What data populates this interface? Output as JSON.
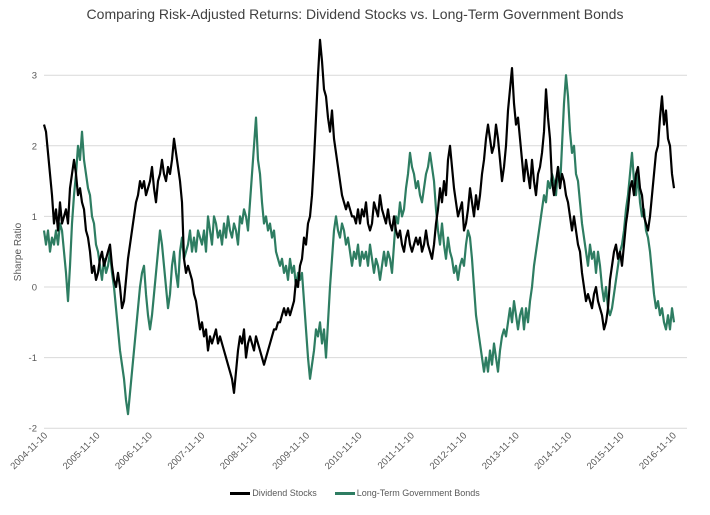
{
  "chart_data": {
    "type": "line",
    "title": "Comparing Risk-Adjusted Returns: Dividend Stocks vs. Long-Term Government Bonds",
    "xlabel": "",
    "ylabel": "Sharpe Ratio",
    "ylim": [
      -2,
      3.5
    ],
    "yticks": [
      "3",
      "2",
      "1",
      "0",
      "-1",
      "-2"
    ],
    "ytick_values": [
      3,
      2,
      1,
      0,
      -1,
      -2
    ],
    "xticks": [
      "2004-11-10",
      "2005-11-10",
      "2006-11-10",
      "2007-11-10",
      "2008-11-10",
      "2009-11-10",
      "2010-11-10",
      "2011-11-10",
      "2012-11-10",
      "2013-11-10",
      "2014-11-10",
      "2015-11-10",
      "2016-11-10"
    ],
    "x_range_years": [
      0,
      12.45
    ],
    "x_start": "2004-11-10",
    "x_step_years": 0.03817,
    "grid": true,
    "legend_position": "bottom",
    "series": [
      {
        "name": "Dividend Stocks",
        "color": "#000000",
        "values": [
          2.3,
          2.2,
          1.9,
          1.6,
          1.3,
          0.9,
          1.1,
          0.8,
          1.2,
          0.9,
          1.0,
          1.1,
          0.9,
          1.4,
          1.6,
          1.8,
          1.6,
          1.3,
          1.4,
          1.2,
          1.1,
          0.8,
          0.7,
          0.5,
          0.2,
          0.3,
          0.1,
          0.2,
          0.4,
          0.5,
          0.3,
          0.4,
          0.5,
          0.6,
          0.3,
          0.1,
          0.0,
          0.2,
          0.0,
          -0.3,
          -0.2,
          0.1,
          0.4,
          0.6,
          0.8,
          1.0,
          1.2,
          1.3,
          1.5,
          1.4,
          1.5,
          1.3,
          1.4,
          1.5,
          1.7,
          1.4,
          1.2,
          1.5,
          1.6,
          1.8,
          1.6,
          1.5,
          1.7,
          1.6,
          1.8,
          2.1,
          1.9,
          1.7,
          1.5,
          1.2,
          0.4,
          0.2,
          0.3,
          0.2,
          0.1,
          -0.1,
          -0.2,
          -0.4,
          -0.6,
          -0.5,
          -0.7,
          -0.6,
          -0.9,
          -0.7,
          -0.8,
          -0.7,
          -0.6,
          -0.8,
          -0.7,
          -0.8,
          -0.9,
          -1.0,
          -1.1,
          -1.2,
          -1.3,
          -1.5,
          -1.2,
          -0.9,
          -0.7,
          -0.8,
          -0.6,
          -1.0,
          -0.8,
          -0.7,
          -0.8,
          -0.9,
          -0.7,
          -0.8,
          -0.9,
          -1.0,
          -1.1,
          -1.0,
          -0.9,
          -0.8,
          -0.7,
          -0.6,
          -0.6,
          -0.5,
          -0.5,
          -0.4,
          -0.3,
          -0.4,
          -0.3,
          -0.4,
          -0.3,
          -0.2,
          0.1,
          0.0,
          0.3,
          0.4,
          0.7,
          0.6,
          0.9,
          1.0,
          1.3,
          1.8,
          2.4,
          3.0,
          3.5,
          3.2,
          2.8,
          2.7,
          2.4,
          2.2,
          2.5,
          2.1,
          1.9,
          1.7,
          1.5,
          1.3,
          1.2,
          1.1,
          1.2,
          1.1,
          1.0,
          1.0,
          0.9,
          1.1,
          0.9,
          1.1,
          1.0,
          1.2,
          0.9,
          0.8,
          0.9,
          1.2,
          1.1,
          1.0,
          1.3,
          1.1,
          1.0,
          0.9,
          1.1,
          0.9,
          0.8,
          1.0,
          0.8,
          0.7,
          0.8,
          0.6,
          0.5,
          0.7,
          0.8,
          0.6,
          0.5,
          0.6,
          0.7,
          0.6,
          0.7,
          0.5,
          0.6,
          0.8,
          0.6,
          0.5,
          0.4,
          0.6,
          0.9,
          1.1,
          1.4,
          1.2,
          1.5,
          1.3,
          1.8,
          2.0,
          1.7,
          1.4,
          1.2,
          1.0,
          1.1,
          1.2,
          0.8,
          0.9,
          1.1,
          1.4,
          1.2,
          1.0,
          1.3,
          1.1,
          1.3,
          1.6,
          1.8,
          2.1,
          2.3,
          2.1,
          1.9,
          2.0,
          2.3,
          2.1,
          1.8,
          1.5,
          1.7,
          2.0,
          2.5,
          2.8,
          3.1,
          2.6,
          2.3,
          2.4,
          2.1,
          1.8,
          1.5,
          1.8,
          1.6,
          1.4,
          1.8,
          1.5,
          1.3,
          1.6,
          1.7,
          1.9,
          2.2,
          2.8,
          2.4,
          2.1,
          1.5,
          1.3,
          1.5,
          1.7,
          1.4,
          1.6,
          1.5,
          1.3,
          1.2,
          1.0,
          0.8,
          1.0,
          0.8,
          0.6,
          0.5,
          0.2,
          0.0,
          -0.2,
          -0.1,
          -0.2,
          -0.3,
          -0.1,
          0.0,
          -0.2,
          -0.3,
          -0.4,
          -0.6,
          -0.5,
          -0.3,
          0.1,
          0.3,
          0.5,
          0.6,
          0.4,
          0.5,
          0.3,
          0.6,
          0.9,
          1.1,
          1.4,
          1.5,
          1.3,
          1.6,
          1.7,
          1.4,
          1.3,
          1.0,
          0.9,
          0.8,
          1.0,
          1.3,
          1.6,
          1.9,
          2.0,
          2.4,
          2.7,
          2.3,
          2.5,
          2.1,
          2.0,
          1.6,
          1.4
        ]
      },
      {
        "name": "Long-Term Government Bonds",
        "color": "#2e7d62",
        "values": [
          0.8,
          0.6,
          0.8,
          0.5,
          0.7,
          0.6,
          0.8,
          0.6,
          0.9,
          0.8,
          0.5,
          0.2,
          -0.2,
          0.3,
          0.9,
          1.3,
          1.6,
          2.0,
          1.8,
          2.2,
          1.8,
          1.6,
          1.4,
          1.3,
          1.0,
          0.9,
          0.6,
          0.5,
          0.3,
          0.1,
          0.4,
          0.2,
          0.3,
          0.5,
          0.2,
          0.0,
          -0.3,
          -0.6,
          -0.9,
          -1.1,
          -1.3,
          -1.6,
          -1.8,
          -1.5,
          -1.2,
          -0.9,
          -0.6,
          -0.3,
          0.0,
          0.2,
          0.3,
          -0.1,
          -0.4,
          -0.6,
          -0.4,
          -0.1,
          0.2,
          0.5,
          0.8,
          0.6,
          0.3,
          0.0,
          -0.3,
          -0.1,
          0.3,
          0.5,
          0.2,
          0.0,
          0.5,
          0.7,
          0.4,
          0.5,
          0.6,
          0.8,
          0.5,
          0.7,
          0.5,
          0.8,
          0.7,
          0.6,
          0.8,
          0.5,
          1.0,
          0.8,
          0.6,
          1.0,
          0.9,
          0.7,
          0.8,
          0.6,
          0.9,
          0.7,
          1.0,
          0.8,
          0.7,
          0.9,
          0.8,
          0.6,
          1.0,
          0.9,
          1.1,
          1.0,
          0.8,
          1.2,
          1.6,
          2.0,
          2.4,
          1.8,
          1.6,
          1.2,
          0.9,
          1.0,
          0.8,
          0.9,
          0.7,
          0.8,
          0.5,
          0.4,
          0.3,
          0.4,
          0.2,
          0.3,
          0.1,
          0.4,
          0.2,
          0.3,
          0.0,
          0.2,
          0.1,
          0.2,
          -0.2,
          -0.6,
          -1.0,
          -1.3,
          -1.1,
          -0.9,
          -0.6,
          -0.7,
          -0.5,
          -0.8,
          -0.6,
          -1.0,
          -0.5,
          0.0,
          0.4,
          0.8,
          1.0,
          0.8,
          0.7,
          0.9,
          0.8,
          0.6,
          0.7,
          0.5,
          0.3,
          0.5,
          0.4,
          0.6,
          0.3,
          0.5,
          0.4,
          0.5,
          0.3,
          0.6,
          0.4,
          0.2,
          0.4,
          0.3,
          0.1,
          0.3,
          0.5,
          0.3,
          0.5,
          0.4,
          0.2,
          0.6,
          1.0,
          0.9,
          1.2,
          1.0,
          1.1,
          1.4,
          1.6,
          1.9,
          1.7,
          1.6,
          1.4,
          1.5,
          1.3,
          1.2,
          1.4,
          1.6,
          1.7,
          1.9,
          1.7,
          1.5,
          1.1,
          0.8,
          0.6,
          0.9,
          0.6,
          0.4,
          0.7,
          0.5,
          0.4,
          0.2,
          0.3,
          0.1,
          0.3,
          0.4,
          0.3,
          0.6,
          0.8,
          0.7,
          0.4,
          0.0,
          -0.4,
          -0.6,
          -0.8,
          -1.0,
          -1.2,
          -1.0,
          -1.2,
          -0.9,
          -1.1,
          -0.8,
          -1.0,
          -1.2,
          -0.9,
          -0.7,
          -0.6,
          -0.7,
          -0.5,
          -0.3,
          -0.5,
          -0.2,
          -0.4,
          -0.6,
          -0.4,
          -0.3,
          -0.6,
          -0.3,
          -0.5,
          -0.2,
          0.0,
          0.3,
          0.5,
          0.7,
          0.9,
          1.1,
          1.3,
          1.2,
          1.5,
          1.4,
          1.6,
          1.5,
          1.3,
          1.7,
          1.4,
          2.0,
          2.6,
          3.0,
          2.7,
          2.2,
          1.9,
          2.0,
          1.6,
          1.5,
          1.2,
          0.9,
          0.7,
          0.5,
          0.3,
          0.6,
          0.4,
          0.5,
          0.2,
          0.5,
          0.3,
          0.0,
          -0.2,
          0.0,
          -0.3,
          -0.4,
          -0.3,
          -0.1,
          0.1,
          0.3,
          0.5,
          0.6,
          0.8,
          1.1,
          1.3,
          1.6,
          1.9,
          1.5,
          1.3,
          1.6,
          1.2,
          1.0,
          1.1,
          0.8,
          0.7,
          0.5,
          0.2,
          -0.1,
          -0.3,
          -0.2,
          -0.4,
          -0.3,
          -0.5,
          -0.6,
          -0.4,
          -0.6,
          -0.3,
          -0.5
        ]
      }
    ]
  }
}
